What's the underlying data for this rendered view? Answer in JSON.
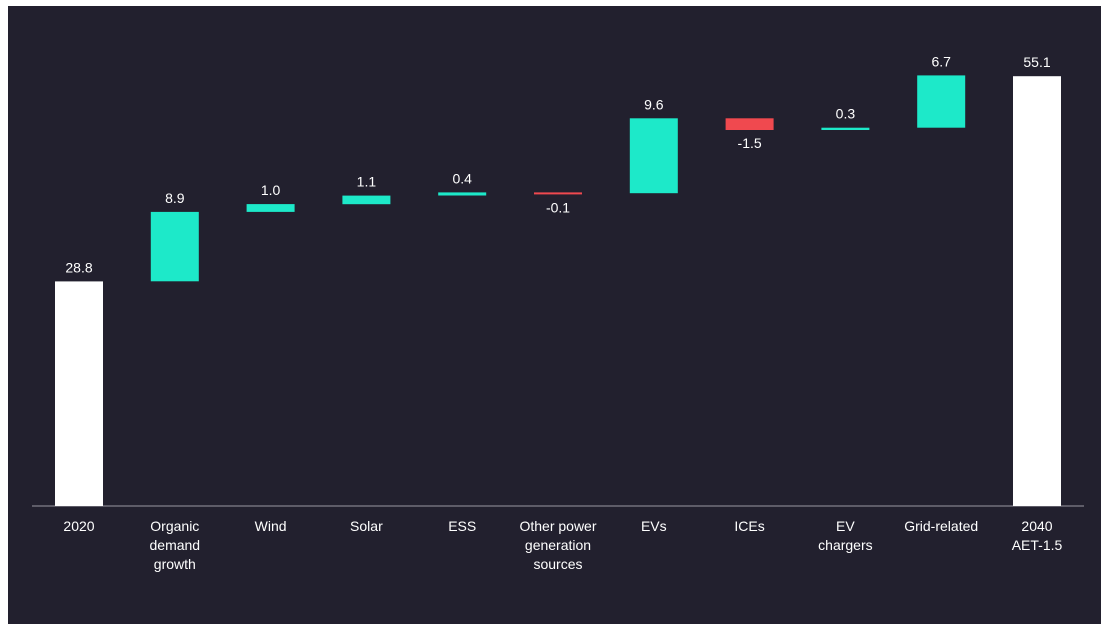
{
  "colors": {
    "background": "#22202e",
    "total": "#ffffff",
    "increase": "#1de9c9",
    "decrease": "#f0494f",
    "text": "#ffffff",
    "axis": "#9a99a3"
  },
  "chart_data": {
    "type": "bar",
    "subtype": "waterfall",
    "title": "",
    "xlabel": "",
    "ylabel": "",
    "ylim": [
      0,
      60
    ],
    "grid": false,
    "legend": "none",
    "categories": [
      "2020",
      "Organic demand growth",
      "Wind",
      "Solar",
      "ESS",
      "Other power generation sources",
      "EVs",
      "ICEs",
      "EV chargers",
      "Grid-related",
      "2040 AET-1.5"
    ],
    "category_lines": [
      [
        "2020"
      ],
      [
        "Organic",
        "demand",
        "growth"
      ],
      [
        "Wind"
      ],
      [
        "Solar"
      ],
      [
        "ESS"
      ],
      [
        "Other power",
        "generation",
        "sources"
      ],
      [
        "EVs"
      ],
      [
        "ICEs"
      ],
      [
        "EV",
        "chargers"
      ],
      [
        "Grid-related"
      ],
      [
        "2040",
        "AET-1.5"
      ]
    ],
    "values": [
      28.8,
      8.9,
      1.0,
      1.1,
      0.4,
      -0.1,
      9.6,
      -1.5,
      0.3,
      6.7,
      55.1
    ],
    "value_labels": [
      "28.8",
      "8.9",
      "1.0",
      "1.1",
      "0.4",
      "-0.1",
      "9.6",
      "-1.5",
      "0.3",
      "6.7",
      "55.1"
    ],
    "kinds": [
      "total",
      "delta",
      "delta",
      "delta",
      "delta",
      "delta",
      "delta",
      "delta",
      "delta",
      "delta",
      "total"
    ]
  }
}
